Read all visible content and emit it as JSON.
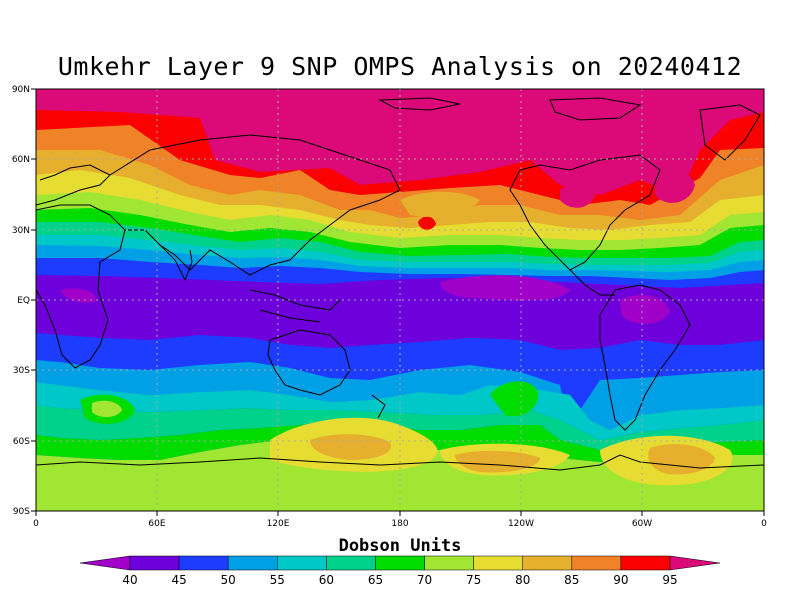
{
  "title": "Umkehr Layer 9 SNP OMPS Analysis on 20240412",
  "lat_labels": [
    "90N",
    "60N",
    "30N",
    "EQ",
    "30S",
    "60S",
    "90S"
  ],
  "lon_labels": [
    "0",
    "60E",
    "120E",
    "180",
    "120W",
    "60W",
    "0"
  ],
  "colorbar": {
    "title": "Dobson Units",
    "ticks": [
      "40",
      "45",
      "50",
      "55",
      "60",
      "65",
      "70",
      "75",
      "80",
      "85",
      "90",
      "95"
    ],
    "colors": [
      "#a000c8",
      "#6e00dc",
      "#1e3cff",
      "#00a0e6",
      "#00c8c8",
      "#00d28c",
      "#00dc00",
      "#a0e632",
      "#e6dc32",
      "#e6af2d",
      "#f08228",
      "#fa0000",
      "#dc0a78"
    ]
  }
}
